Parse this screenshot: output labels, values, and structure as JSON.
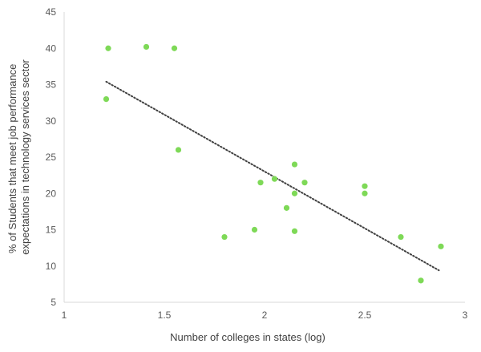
{
  "chart_data": {
    "type": "scatter",
    "title": "",
    "xlabel": "Number of colleges in states (log)",
    "ylabel": "% of Students that meet job performance expectations in technology services sector",
    "ylabel_lines": [
      "% of Students that meet job performance",
      "expectations in technology services sector"
    ],
    "xlim": [
      1,
      3
    ],
    "ylim": [
      5,
      45
    ],
    "xticks": [
      1,
      1.5,
      2,
      2.5,
      3
    ],
    "yticks": [
      5,
      10,
      15,
      20,
      25,
      30,
      35,
      40,
      45
    ],
    "grid": false,
    "legend": "none",
    "point_color": "#7ed957",
    "trendline": {
      "type": "linear",
      "style": "dotted",
      "color": "#404040",
      "x": [
        1.21,
        2.87
      ],
      "y": [
        35.4,
        9.4
      ]
    },
    "series": [
      {
        "points": [
          {
            "x": 1.21,
            "y": 33
          },
          {
            "x": 1.22,
            "y": 40
          },
          {
            "x": 1.41,
            "y": 40.2
          },
          {
            "x": 1.55,
            "y": 40
          },
          {
            "x": 1.57,
            "y": 26
          },
          {
            "x": 1.8,
            "y": 14
          },
          {
            "x": 1.95,
            "y": 15
          },
          {
            "x": 1.98,
            "y": 21.5
          },
          {
            "x": 2.05,
            "y": 22
          },
          {
            "x": 2.11,
            "y": 18
          },
          {
            "x": 2.15,
            "y": 24
          },
          {
            "x": 2.15,
            "y": 20
          },
          {
            "x": 2.15,
            "y": 14.8
          },
          {
            "x": 2.2,
            "y": 21.5
          },
          {
            "x": 2.5,
            "y": 21
          },
          {
            "x": 2.5,
            "y": 20
          },
          {
            "x": 2.68,
            "y": 14
          },
          {
            "x": 2.78,
            "y": 8
          },
          {
            "x": 2.88,
            "y": 12.7
          }
        ]
      }
    ]
  }
}
